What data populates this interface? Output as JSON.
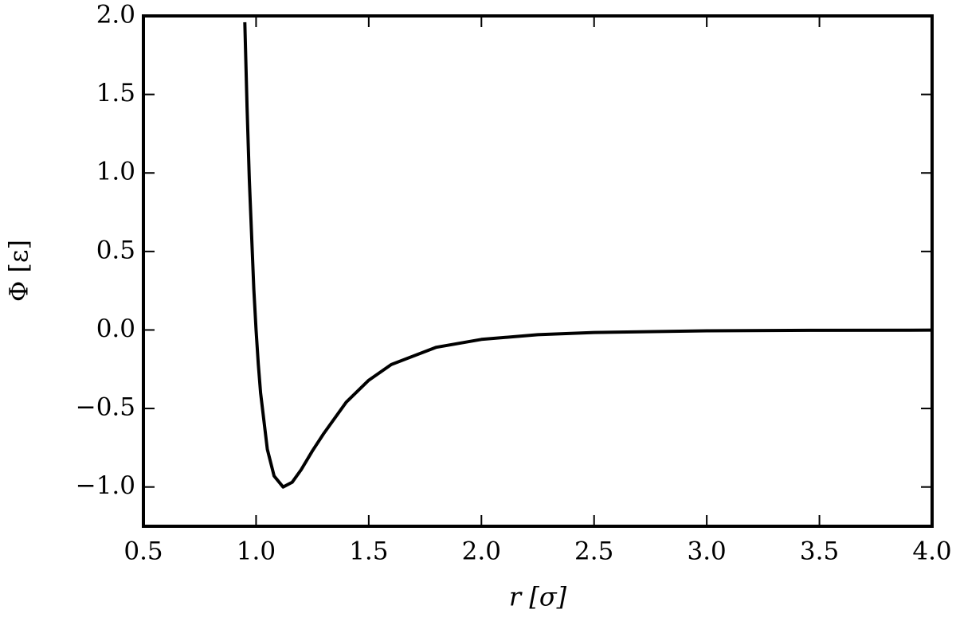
{
  "chart_data": {
    "type": "line",
    "x_label": "r [σ]",
    "y_label": "Φ [ε]",
    "x": [
      0.95,
      0.96,
      0.97,
      0.99,
      1.0,
      1.01,
      1.02,
      1.05,
      1.08,
      1.12,
      1.16,
      1.2,
      1.25,
      1.3,
      1.4,
      1.5,
      1.6,
      1.8,
      2.0,
      2.25,
      2.5,
      3.0,
      3.5,
      4.0
    ],
    "series": [
      {
        "color": "#000000",
        "values": [
          1.96,
          1.42,
          0.96,
          0.26,
          0.0,
          -0.22,
          -0.4,
          -0.76,
          -0.93,
          -1.0,
          -0.97,
          -0.89,
          -0.77,
          -0.66,
          -0.46,
          -0.32,
          -0.22,
          -0.11,
          -0.06,
          -0.03,
          -0.016,
          -0.005,
          -0.002,
          -0.001
        ]
      }
    ],
    "xlim": [
      0.5,
      4.0
    ],
    "ylim": [
      -1.25,
      2.0
    ],
    "xticks": [
      {
        "value": 0.5,
        "label": "0.5"
      },
      {
        "value": 1.0,
        "label": "1.0"
      },
      {
        "value": 1.5,
        "label": "1.5"
      },
      {
        "value": 2.0,
        "label": "2.0"
      },
      {
        "value": 2.5,
        "label": "2.5"
      },
      {
        "value": 3.0,
        "label": "3.0"
      },
      {
        "value": 3.5,
        "label": "3.5"
      },
      {
        "value": 4.0,
        "label": "4.0"
      }
    ],
    "yticks": [
      {
        "value": -1.0,
        "label": "−1.0"
      },
      {
        "value": -0.5,
        "label": "−0.5"
      },
      {
        "value": 0.0,
        "label": "0.0"
      },
      {
        "value": 0.5,
        "label": "0.5"
      },
      {
        "value": 1.0,
        "label": "1.0"
      },
      {
        "value": 1.5,
        "label": "1.5"
      },
      {
        "value": 2.0,
        "label": "2.0"
      }
    ],
    "grid": false
  }
}
